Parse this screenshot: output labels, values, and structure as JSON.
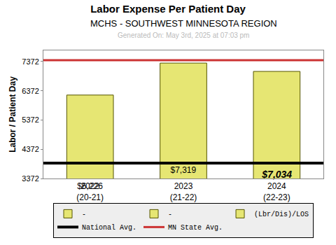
{
  "chart_data": {
    "type": "bar",
    "title": "Labor Expense Per Patient Day",
    "subtitle": "MCHS - SOUTHWEST MINNESOTA REGION",
    "annotations": [
      "Generated On: May 3rd, 2025 at 07:03 pm"
    ],
    "y_label": "Labor / Patient Day",
    "categories": [
      "2022\n(20-21)",
      "2023\n(21-22)",
      "2024\n(22-23)"
    ],
    "series": [
      {
        "name": "-",
        "color": "#e6e673",
        "values": [
          null,
          null,
          null
        ]
      },
      {
        "name": "-",
        "color": "#e6e673",
        "values": [
          null,
          null,
          null
        ]
      },
      {
        "name": "(Lbr/Dis)/LOS",
        "color": "#e6e673",
        "values": [
          6226,
          7319,
          7034
        ],
        "value_labels": [
          "$6,226",
          "$7,319",
          "$7,034"
        ]
      },
      {
        "name": "National Avg.",
        "type": "line",
        "color": "#000000",
        "value": 3896
      },
      {
        "name": "MN State Avg.",
        "type": "line",
        "color": "#cc3333",
        "value": 7420
      }
    ],
    "ylim": [
      3372,
      7753
    ],
    "yticks": [
      3372,
      4372,
      5372,
      6372,
      7372
    ],
    "grid": false,
    "legend": "bottom",
    "data_labels": true
  }
}
